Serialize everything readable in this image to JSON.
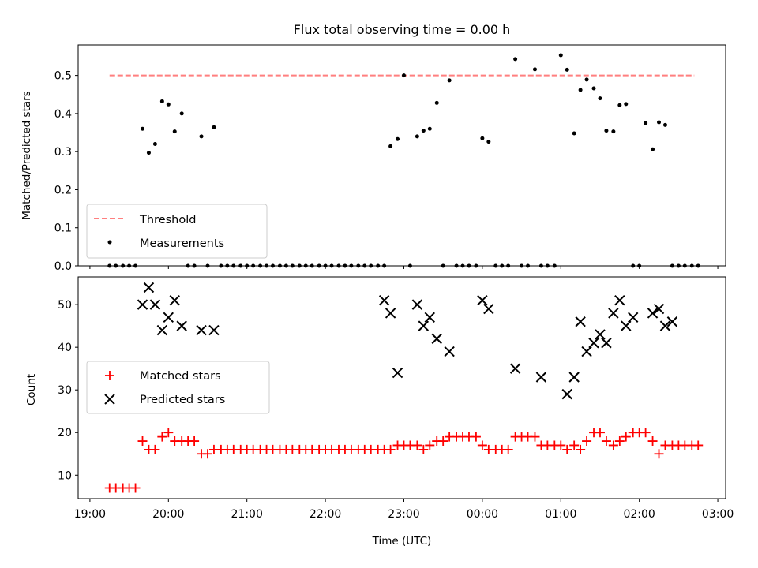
{
  "chart_data": [
    {
      "type": "scatter",
      "title": "Flux total observing time = 0.00 h",
      "xlabel": "",
      "ylabel": "Matched/Predicted stars",
      "ylim": [
        0,
        0.58
      ],
      "yticks": [
        0.0,
        0.1,
        0.2,
        0.3,
        0.4,
        0.5
      ],
      "ytick_labels": [
        "0.0",
        "0.1",
        "0.2",
        "0.3",
        "0.4",
        "0.5"
      ],
      "xlim": [
        18.85,
        27.1
      ],
      "grid": false,
      "legend_position": "lower-left",
      "series": [
        {
          "name": "Threshold",
          "kind": "dashed-line",
          "color": "#ff7f7f",
          "x": [
            19.25,
            26.7
          ],
          "y": [
            0.5,
            0.5
          ]
        },
        {
          "name": "Measurements",
          "kind": "dots",
          "color": "#000000",
          "x": [
            19.25,
            19.33,
            19.42,
            19.5,
            19.58,
            19.67,
            19.75,
            19.83,
            19.92,
            20.0,
            20.08,
            20.17,
            20.25,
            20.33,
            20.42,
            20.5,
            20.58,
            20.67,
            20.75,
            20.83,
            20.92,
            21.0,
            21.08,
            21.17,
            21.25,
            21.33,
            21.42,
            21.5,
            21.58,
            21.67,
            21.75,
            21.83,
            21.92,
            22.0,
            22.08,
            22.17,
            22.25,
            22.33,
            22.42,
            22.5,
            22.58,
            22.67,
            22.75,
            22.83,
            22.92,
            23.0,
            23.08,
            23.17,
            23.25,
            23.33,
            23.42,
            23.5,
            23.58,
            23.67,
            23.75,
            23.83,
            23.92,
            24.0,
            24.08,
            24.17,
            24.25,
            24.33,
            24.42,
            24.5,
            24.58,
            24.67,
            24.75,
            24.83,
            24.92,
            25.0,
            25.08,
            25.17,
            25.25,
            25.33,
            25.42,
            25.5,
            25.58,
            25.67,
            25.75,
            25.83,
            25.92,
            26.0,
            26.08,
            26.17,
            26.25,
            26.33,
            26.42,
            26.5,
            26.58,
            26.67,
            26.75
          ],
          "y": [
            0,
            0,
            0,
            0,
            0,
            0.36,
            0.297,
            0.32,
            0.432,
            0.424,
            0.353,
            0.4,
            0,
            0,
            0.34,
            0,
            0.364,
            0,
            0,
            0,
            0,
            0,
            0,
            0,
            0,
            0,
            0,
            0,
            0,
            0,
            0,
            0,
            0,
            0,
            0,
            0,
            0,
            0,
            0,
            0,
            0,
            0,
            0,
            0.314,
            0.333,
            0.5,
            0,
            0.34,
            0.355,
            0.36,
            0.428,
            0,
            0.487,
            0,
            0,
            0,
            0,
            0.335,
            0.326,
            0,
            0,
            0,
            0.543,
            0,
            0,
            0.516,
            0,
            0,
            0,
            0.553,
            0.515,
            0.348,
            0.462,
            0.489,
            0.466,
            0.44,
            0.355,
            0.353,
            0.422,
            0.425,
            0,
            0,
            0.375,
            0.306,
            0.377,
            0.37,
            0,
            0,
            0,
            0,
            0
          ]
        }
      ]
    },
    {
      "type": "scatter",
      "title": "",
      "xlabel": "Time (UTC)",
      "ylabel": "Count",
      "ylim": [
        4.5,
        56.5
      ],
      "yticks": [
        10,
        20,
        30,
        40,
        50
      ],
      "ytick_labels": [
        "10",
        "20",
        "30",
        "40",
        "50"
      ],
      "xlim": [
        18.85,
        27.1
      ],
      "xticks": [
        19,
        20,
        21,
        22,
        23,
        24,
        25,
        26,
        27
      ],
      "xtick_labels": [
        "19:00",
        "20:00",
        "21:00",
        "22:00",
        "23:00",
        "00:00",
        "01:00",
        "02:00",
        "03:00"
      ],
      "grid": false,
      "legend_position": "center-left",
      "series": [
        {
          "name": "Matched stars",
          "kind": "plus",
          "color": "#ff0000",
          "x": [
            19.25,
            19.33,
            19.42,
            19.5,
            19.58,
            19.67,
            19.75,
            19.83,
            19.92,
            20.0,
            20.08,
            20.17,
            20.25,
            20.33,
            20.42,
            20.5,
            20.58,
            20.67,
            20.75,
            20.83,
            20.92,
            21.0,
            21.08,
            21.17,
            21.25,
            21.33,
            21.42,
            21.5,
            21.58,
            21.67,
            21.75,
            21.83,
            21.92,
            22.0,
            22.08,
            22.17,
            22.25,
            22.33,
            22.42,
            22.5,
            22.58,
            22.67,
            22.75,
            22.83,
            22.92,
            23.0,
            23.08,
            23.17,
            23.25,
            23.33,
            23.42,
            23.5,
            23.58,
            23.67,
            23.75,
            23.83,
            23.92,
            24.0,
            24.08,
            24.17,
            24.25,
            24.33,
            24.42,
            24.5,
            24.58,
            24.67,
            24.75,
            24.83,
            24.92,
            25.0,
            25.08,
            25.17,
            25.25,
            25.33,
            25.42,
            25.5,
            25.58,
            25.67,
            25.75,
            25.83,
            25.92,
            26.0,
            26.08,
            26.17,
            26.25,
            26.33,
            26.42,
            26.5,
            26.58,
            26.67,
            26.75
          ],
          "y": [
            7,
            7,
            7,
            7,
            7,
            18,
            16,
            16,
            19,
            20,
            18,
            18,
            18,
            18,
            15,
            15,
            16,
            16,
            16,
            16,
            16,
            16,
            16,
            16,
            16,
            16,
            16,
            16,
            16,
            16,
            16,
            16,
            16,
            16,
            16,
            16,
            16,
            16,
            16,
            16,
            16,
            16,
            16,
            16,
            17,
            17,
            17,
            17,
            16,
            17,
            18,
            18,
            19,
            19,
            19,
            19,
            19,
            17,
            16,
            16,
            16,
            16,
            19,
            19,
            19,
            19,
            17,
            17,
            17,
            17,
            16,
            17,
            16,
            18,
            20,
            20,
            18,
            17,
            18,
            19,
            20,
            20,
            20,
            18,
            15,
            17,
            17,
            17,
            17,
            17,
            17
          ]
        },
        {
          "name": "Predicted stars",
          "kind": "cross",
          "color": "#000000",
          "x": [
            19.67,
            19.75,
            19.83,
            19.92,
            20.0,
            20.08,
            20.17,
            20.42,
            20.58,
            22.75,
            22.83,
            22.92,
            23.17,
            23.25,
            23.33,
            23.42,
            23.58,
            24.0,
            24.08,
            24.42,
            24.75,
            25.08,
            25.17,
            25.25,
            25.33,
            25.42,
            25.5,
            25.58,
            25.67,
            25.75,
            25.83,
            25.92,
            26.17,
            26.25,
            26.33,
            26.42
          ],
          "y": [
            50,
            54,
            50,
            44,
            47,
            51,
            45,
            44,
            44,
            51,
            48,
            34,
            50,
            45,
            47,
            42,
            39,
            51,
            49,
            35,
            33,
            29,
            33,
            46,
            39,
            41,
            43,
            41,
            48,
            51,
            45,
            47,
            48,
            49,
            45,
            46
          ]
        }
      ]
    }
  ]
}
